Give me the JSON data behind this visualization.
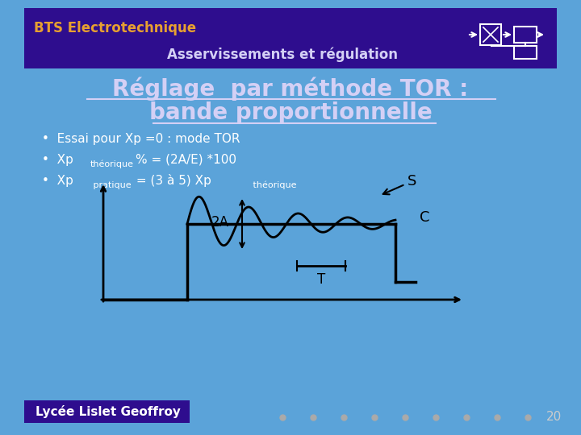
{
  "bg_color": "#5ba3d9",
  "header_bg": "#2e0d8e",
  "header_text_bts": "BTS Electrotechnique",
  "header_text_asserv": "Asservissements et régulation",
  "title_line1": "Réglage  par méthode TOR :",
  "title_line2": "bande proportionnelle",
  "bullet1": "Essai pour Xp =0 : mode TOR",
  "bullet2_pre": "•  Xp",
  "bullet2_sub": "théorique",
  "bullet2_rest": "% = (2A/E) *100",
  "bullet3_pre": "•  Xp",
  "bullet3_sub1": " pratique",
  "bullet3_mid": " = (3 à 5) Xp",
  "bullet3_sub2": " théorique",
  "footer_text": "Lycée Lislet Geoffroy",
  "footer_bg": "#2e0d8e",
  "page_number": "20",
  "label_S": "S",
  "label_C": "C",
  "label_2A": "2A",
  "label_T": "T",
  "title_color": "#d4d0f5",
  "header_bts_color": "#e8a030",
  "header_asserv_color": "#d4d0f5",
  "bullet_color": "#ffffff",
  "footer_text_color": "#ffffff",
  "curve_color": "#000000",
  "axis_color": "#000000",
  "dot_color": "#aaaaaa",
  "pagenum_color": "#cccccc"
}
